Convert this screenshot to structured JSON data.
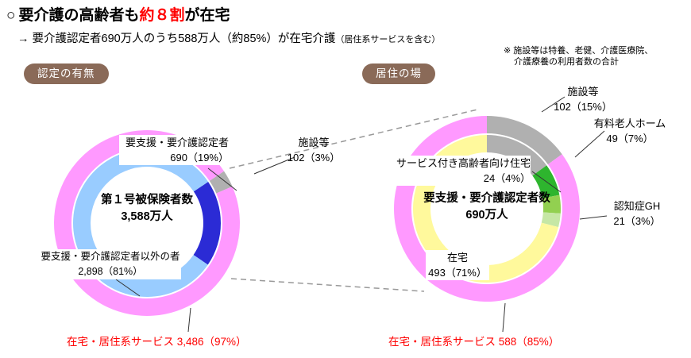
{
  "page": {
    "title": {
      "bullet": "○",
      "pre": "要介護の高齢者も",
      "highlight": "約８割",
      "post": "が在宅"
    },
    "subtitle": {
      "arrow": "→",
      "text": "要介護認定者690万人のうち588万人（約85%）が在宅介護",
      "suffix": "（居住系サービスを含む）"
    },
    "note_line1": "※ 施設等は特養、老健、介護医療院、",
    "note_line2": "介護療養の利用者数の合計"
  },
  "badges": {
    "certification": "認定の有無",
    "residence": "居住の場"
  },
  "colors": {
    "pink": "#FF99FF",
    "light_blue": "#99CCFF",
    "blue": "#2B2BD5",
    "gray": "#B0B0B0",
    "yellow": "#FFF99C",
    "green": "#2EB52E",
    "light_green": "#92D050",
    "pale_green": "#C6E7A5",
    "red_text": "#FF0000",
    "badge_brown": "#8A6A58"
  },
  "chart_data": [
    {
      "type": "pie",
      "id": "certification",
      "title": "第１号被保険者数",
      "total_label": "3,588万人",
      "total": 3588,
      "unit": "万人",
      "start_angle": 56,
      "rings": {
        "outer": [
          {
            "label": "施設等",
            "value": 102,
            "pct": 3,
            "color_key": "gray"
          },
          {
            "label": "在宅・居住系サービス",
            "value": 3486,
            "pct": 97,
            "color_key": "pink"
          }
        ],
        "inner": [
          {
            "label": "要支援・要介護認定者",
            "value": 690,
            "pct": 19,
            "color_key": "blue"
          },
          {
            "label": "要支援・要介護認定者以外の者",
            "value": 2898,
            "pct": 81,
            "color_key": "light_blue"
          }
        ]
      }
    },
    {
      "type": "pie",
      "id": "residence",
      "title": "要支援・要介護認定者数",
      "total_label": "690万人",
      "total": 690,
      "unit": "万人",
      "start_angle": 0,
      "rings": {
        "outer": [
          {
            "label": "施設等",
            "value": 102,
            "pct": 15,
            "color_key": "gray"
          },
          {
            "label": "在宅・居住系サービス",
            "value": 588,
            "pct": 85,
            "color_key": "pink"
          }
        ],
        "inner": [
          {
            "label": "施設等",
            "value": 102,
            "pct": 15,
            "color_key": "gray"
          },
          {
            "label": "有料老人ホーム",
            "value": 49,
            "pct": 7,
            "color_key": "green"
          },
          {
            "label": "サービス付き高齢者向け住宅",
            "value": 24,
            "pct": 4,
            "color_key": "light_green"
          },
          {
            "label": "認知症GH",
            "value": 21,
            "pct": 3,
            "color_key": "pale_green"
          },
          {
            "label": "在宅",
            "value": 493,
            "pct": 71,
            "color_key": "yellow"
          }
        ]
      }
    }
  ],
  "labels": {
    "cert_certified": {
      "line1": "要支援・要介護認定者",
      "line2": "690（19%）"
    },
    "cert_facility": {
      "line1": "施設等",
      "line2": "102（3%）"
    },
    "cert_other": {
      "line1": "要支援・要介護認定者以外の者",
      "line2": "2,898（81%）"
    },
    "cert_home_red": "在宅・居住系サービス 3,486（97%）",
    "res_facility": {
      "line1": "施設等",
      "line2": "102（15%）"
    },
    "res_paid_home": {
      "line1": "有料老人ホーム",
      "line2": "49（7%）"
    },
    "res_service_housing": {
      "line1": "サービス付き高齢者向け住宅",
      "line2": "24（4%）"
    },
    "res_dementia": {
      "line1": "認知症GH",
      "line2": "21（3%）"
    },
    "res_home": {
      "line1": "在宅",
      "line2": "493（71%）"
    },
    "res_home_red": "在宅・居住系サービス 588（85%）"
  }
}
